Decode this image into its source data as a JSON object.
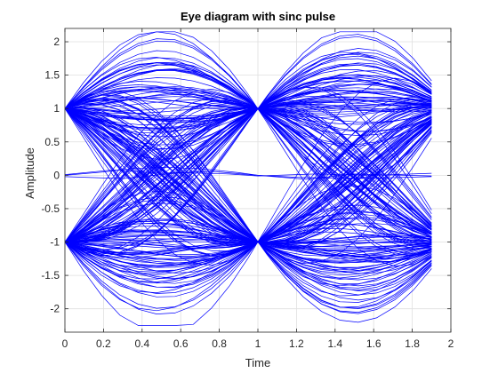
{
  "chart_data": {
    "type": "line",
    "title": "Eye diagram with sinc pulse",
    "xlabel": "Time",
    "ylabel": "Amplitude",
    "xlim": [
      0,
      2
    ],
    "ylim": [
      -2.35,
      2.2
    ],
    "x_ticks": [
      0,
      0.2,
      0.4,
      0.6,
      0.8,
      1,
      1.2,
      1.4,
      1.6,
      1.8,
      2
    ],
    "x_tick_labels": [
      "0",
      "0.2",
      "0.4",
      "0.6",
      "0.8",
      "1",
      "1.2",
      "1.4",
      "1.6",
      "1.8",
      "2"
    ],
    "y_ticks": [
      -2,
      -1.5,
      -1,
      -0.5,
      0,
      0.5,
      1,
      1.5,
      2
    ],
    "y_tick_labels": [
      "-2",
      "-1.5",
      "-1",
      "-0.5",
      "0",
      "0.5",
      "1",
      "1.5",
      "2"
    ],
    "grid": true,
    "line_color": "#0000ff",
    "trace_x_range": [
      0,
      1.9
    ],
    "eye_crossings": [
      0,
      1
    ],
    "crossing_levels": [
      -1,
      1
    ],
    "max_excursion": 2.15,
    "trace_count": 240
  }
}
